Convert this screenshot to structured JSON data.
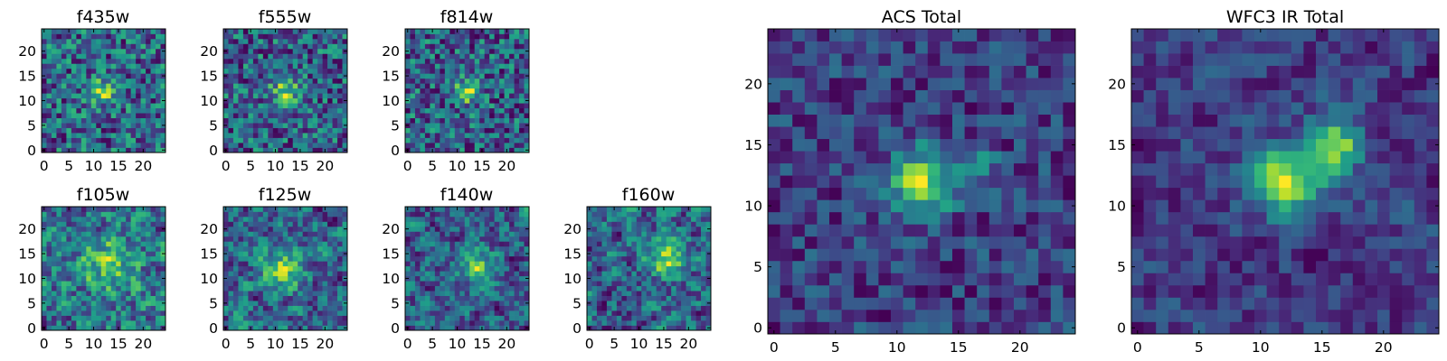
{
  "chart_data": [
    {
      "type": "heatmap",
      "title": "f435w",
      "colormap": "viridis",
      "grid_size": [
        25,
        25
      ],
      "x_ticks": [
        "0",
        "5",
        "10",
        "15",
        "20"
      ],
      "y_ticks": [
        "0",
        "5",
        "10",
        "15",
        "20"
      ],
      "bright_spots": [
        {
          "x": 12,
          "y": 12,
          "r": 2.0,
          "amp": 0.35
        }
      ],
      "noise_level": 0.55,
      "smooth": 0,
      "seed": 11
    },
    {
      "type": "heatmap",
      "title": "f555w",
      "colormap": "viridis",
      "grid_size": [
        25,
        25
      ],
      "x_ticks": [
        "0",
        "5",
        "10",
        "15",
        "20"
      ],
      "y_ticks": [
        "0",
        "5",
        "10",
        "15",
        "20"
      ],
      "bright_spots": [
        {
          "x": 12,
          "y": 12,
          "r": 1.8,
          "amp": 0.4
        }
      ],
      "noise_level": 0.55,
      "smooth": 0,
      "seed": 23
    },
    {
      "type": "heatmap",
      "title": "f814w",
      "colormap": "viridis",
      "grid_size": [
        25,
        25
      ],
      "x_ticks": [
        "0",
        "5",
        "10",
        "15",
        "20"
      ],
      "y_ticks": [
        "0",
        "5",
        "10",
        "15",
        "20"
      ],
      "bright_spots": [
        {
          "x": 12,
          "y": 12,
          "r": 1.8,
          "amp": 0.4
        }
      ],
      "noise_level": 0.55,
      "smooth": 0,
      "seed": 37
    },
    {
      "type": "heatmap",
      "title": "f105w",
      "colormap": "viridis",
      "grid_size": [
        25,
        25
      ],
      "x_ticks": [
        "0",
        "5",
        "10",
        "15",
        "20"
      ],
      "y_ticks": [
        "0",
        "5",
        "10",
        "15",
        "20"
      ],
      "bright_spots": [
        {
          "x": 13,
          "y": 13,
          "r": 3.0,
          "amp": 0.25
        }
      ],
      "noise_level": 0.5,
      "smooth": 1,
      "seed": 41
    },
    {
      "type": "heatmap",
      "title": "f125w",
      "colormap": "viridis",
      "grid_size": [
        25,
        25
      ],
      "x_ticks": [
        "0",
        "5",
        "10",
        "15",
        "20"
      ],
      "y_ticks": [
        "0",
        "5",
        "10",
        "15",
        "20"
      ],
      "bright_spots": [
        {
          "x": 12,
          "y": 12,
          "r": 3.0,
          "amp": 0.25
        }
      ],
      "noise_level": 0.5,
      "smooth": 1,
      "seed": 53
    },
    {
      "type": "heatmap",
      "title": "f140w",
      "colormap": "viridis",
      "grid_size": [
        25,
        25
      ],
      "x_ticks": [
        "0",
        "5",
        "10",
        "15",
        "20"
      ],
      "y_ticks": [
        "0",
        "5",
        "10",
        "15",
        "20"
      ],
      "bright_spots": [
        {
          "x": 14,
          "y": 12,
          "r": 2.5,
          "amp": 0.3
        }
      ],
      "noise_level": 0.5,
      "smooth": 1,
      "seed": 67
    },
    {
      "type": "heatmap",
      "title": "f160w",
      "colormap": "viridis",
      "grid_size": [
        25,
        25
      ],
      "x_ticks": [
        "0",
        "5",
        "10",
        "15",
        "20"
      ],
      "y_ticks": [
        "0",
        "5",
        "10",
        "15",
        "20"
      ],
      "bright_spots": [
        {
          "x": 16,
          "y": 14,
          "r": 2.5,
          "amp": 0.3
        }
      ],
      "noise_level": 0.5,
      "smooth": 1,
      "seed": 79
    },
    {
      "type": "heatmap",
      "title": "ACS Total",
      "colormap": "viridis",
      "grid_size": [
        25,
        25
      ],
      "x_ticks": [
        "0",
        "5",
        "10",
        "15",
        "20"
      ],
      "y_ticks": [
        "0",
        "5",
        "10",
        "15",
        "20"
      ],
      "bright_spots": [
        {
          "x": 12,
          "y": 12,
          "r": 1.8,
          "amp": 0.85
        },
        {
          "x": 17,
          "y": 14,
          "r": 0.8,
          "amp": 0.5
        }
      ],
      "noise_level": 0.45,
      "smooth": 0,
      "seed": 97
    },
    {
      "type": "heatmap",
      "title": "WFC3 IR Total",
      "colormap": "viridis",
      "grid_size": [
        25,
        25
      ],
      "x_ticks": [
        "0",
        "5",
        "10",
        "15",
        "20"
      ],
      "y_ticks": [
        "0",
        "5",
        "10",
        "15",
        "20"
      ],
      "bright_spots": [
        {
          "x": 12,
          "y": 12,
          "r": 2.0,
          "amp": 0.6
        },
        {
          "x": 16,
          "y": 15,
          "r": 1.6,
          "amp": 0.55
        }
      ],
      "noise_level": 0.45,
      "smooth": 1,
      "seed": 131
    }
  ]
}
